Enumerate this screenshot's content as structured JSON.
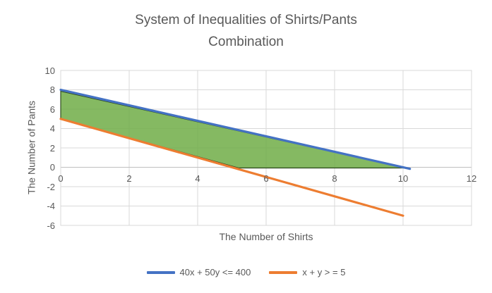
{
  "chart_data": {
    "type": "line",
    "title": "System of Inequalities of Shirts/Pants Combination",
    "title_lines": [
      "System of Inequalities of Shirts/Pants",
      "Combination"
    ],
    "xlabel": "The Number of Shirts",
    "ylabel": "The Number of Pants",
    "xlim": [
      0,
      12
    ],
    "ylim": [
      -6,
      10
    ],
    "xticks": [
      0,
      2,
      4,
      6,
      8,
      10,
      12
    ],
    "yticks": [
      10,
      8,
      6,
      4,
      2,
      0,
      -2,
      -4,
      -6
    ],
    "grid": true,
    "grid_color": "#D9D9D9",
    "axis_color": "#BFBFBF",
    "text_color": "#595959",
    "legend_position": "bottom",
    "series": [
      {
        "name": "40x + 50y <= 400",
        "color": "#4472C4",
        "points": [
          [
            0,
            8
          ],
          [
            10.2,
            -0.16
          ]
        ]
      },
      {
        "name": "x + y > = 5",
        "color": "#ED7D31",
        "points": [
          [
            0,
            5
          ],
          [
            10,
            -5
          ]
        ]
      }
    ],
    "feasible_region": {
      "color": "#70AD47",
      "opacity": 0.85,
      "border_color": "#2F4D20",
      "points": [
        [
          0,
          7.85
        ],
        [
          10.05,
          -0.07
        ],
        [
          5.2,
          -0.07
        ],
        [
          0,
          5
        ]
      ]
    }
  }
}
